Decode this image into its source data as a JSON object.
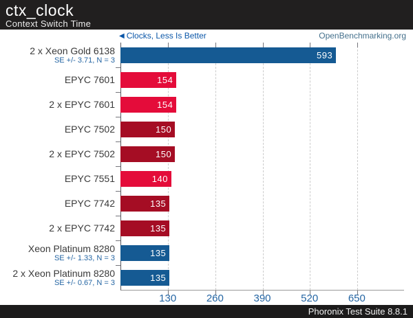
{
  "header": {
    "title": "ctx_clock",
    "subtitle": "Context Switch Time"
  },
  "meta": {
    "better_note": "Clocks, Less Is Better",
    "watermark": "OpenBenchmarking.org"
  },
  "footer": {
    "text": "Phoronix Test Suite 8.8.1"
  },
  "colors": {
    "intel_blue": "#155a93",
    "amd_bright_red": "#e40c3a",
    "amd_dark_red": "#a50d24",
    "accent_text_blue": "#2465a3",
    "header_bg": "#211f1f"
  },
  "chart_data": {
    "type": "bar",
    "orientation": "horizontal",
    "title": "ctx_clock",
    "subtitle": "Context Switch Time",
    "xlabel": "Clocks",
    "xlim": [
      0,
      780
    ],
    "xticks": [
      130,
      260,
      390,
      520,
      650
    ],
    "grid": "vertical-dashed",
    "legend_position": "none",
    "bars": [
      {
        "label": "2 x Xeon Gold 6138",
        "se": "SE +/- 3.71, N = 3",
        "value": 593,
        "color": "#155a93"
      },
      {
        "label": "EPYC 7601",
        "se": "",
        "value": 154,
        "color": "#e40c3a"
      },
      {
        "label": "2 x EPYC 7601",
        "se": "",
        "value": 154,
        "color": "#e40c3a"
      },
      {
        "label": "EPYC 7502",
        "se": "",
        "value": 150,
        "color": "#a50d24"
      },
      {
        "label": "2 x EPYC 7502",
        "se": "",
        "value": 150,
        "color": "#a50d24"
      },
      {
        "label": "EPYC 7551",
        "se": "",
        "value": 140,
        "color": "#e40c3a"
      },
      {
        "label": "EPYC 7742",
        "se": "",
        "value": 135,
        "color": "#a50d24"
      },
      {
        "label": "2 x EPYC 7742",
        "se": "",
        "value": 135,
        "color": "#a50d24"
      },
      {
        "label": "Xeon Platinum 8280",
        "se": "SE +/- 1.33, N = 3",
        "value": 135,
        "color": "#155a93"
      },
      {
        "label": "2 x Xeon Platinum 8280",
        "se": "SE +/- 0.67, N = 3",
        "value": 135,
        "color": "#155a93"
      }
    ]
  }
}
